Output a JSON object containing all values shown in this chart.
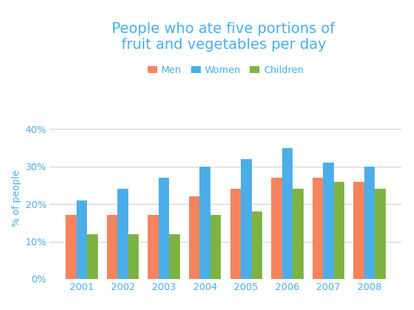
{
  "title": "People who ate five portions of\nfruit and vegetables per day",
  "ylabel": "% of people",
  "years": [
    2001,
    2002,
    2003,
    2004,
    2005,
    2006,
    2007,
    2008
  ],
  "men": [
    17,
    17,
    17,
    22,
    24,
    27,
    27,
    26
  ],
  "women": [
    21,
    24,
    27,
    30,
    32,
    35,
    31,
    30
  ],
  "children": [
    12,
    12,
    12,
    17,
    18,
    24,
    26,
    24
  ],
  "colors": {
    "men": "#F4845F",
    "women": "#4BAEE8",
    "children": "#7CB342"
  },
  "yticks": [
    0,
    10,
    20,
    30,
    40
  ],
  "ytick_labels": [
    "0%",
    "10%",
    "20%",
    "30%",
    "40%"
  ],
  "ylim": [
    0,
    43
  ],
  "title_color": "#4BAEE8",
  "ylabel_color": "#4BAEE8",
  "tick_color": "#4BAEE8",
  "grid_color": "#d0d0d0",
  "background_color": "#ffffff",
  "bar_width": 0.26,
  "legend_labels": [
    "Men",
    "Women",
    "Children"
  ],
  "title_fontsize": 15,
  "axis_fontsize": 10,
  "legend_fontsize": 10
}
